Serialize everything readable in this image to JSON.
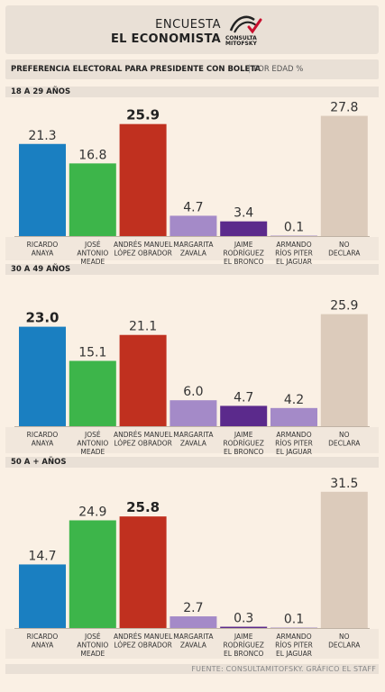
{
  "header": {
    "line1": "ENCUESTA",
    "line2": "EL ECONOMISTA",
    "logo_line1": "CONSULTA",
    "logo_line2": "MITOFSKY",
    "logo_icon": "mitofsky-logo-icon",
    "accent": "#c8102e"
  },
  "subtitle": {
    "main": "PREFERENCIA ELECTORAL PARA PRESIDENTE CON BOLETA",
    "separator": "|",
    "unit": "POR EDAD %"
  },
  "source": "FUENTE: CONSULTAMITOFSKY. GRÁFICO EL STAFF",
  "colors": [
    "#1a7fc1",
    "#3db54a",
    "#c0301f",
    "#a48ac8",
    "#5b2a8c",
    "#a48ac8",
    "#dccbbb"
  ],
  "chart_data": [
    {
      "type": "bar",
      "title": "18 A 29 AÑOS",
      "categories": [
        [
          "RICARDO",
          "ANAYA"
        ],
        [
          "JOSÉ",
          "ANTONIO",
          "MEADE"
        ],
        [
          "ANDRÉS MANUEL",
          "LÓPEZ OBRADOR"
        ],
        [
          "MARGARITA",
          "ZAVALA"
        ],
        [
          "JAIME",
          "RODRÍGUEZ",
          "EL BRONCO"
        ],
        [
          "ARMANDO",
          "RÍOS PITER",
          "EL JAGUAR"
        ],
        [
          "NO",
          "DECLARA"
        ]
      ],
      "value_labels": [
        "21.3",
        "16.8",
        "25.9",
        "4.7",
        "3.4",
        "0.1",
        "27.8"
      ],
      "values": [
        21.3,
        16.8,
        25.9,
        4.7,
        3.4,
        0.1,
        27.8
      ],
      "bold_index": 2
    },
    {
      "type": "bar",
      "title": "30 A 49 AÑOS",
      "categories": [
        [
          "RICARDO",
          "ANAYA"
        ],
        [
          "JOSÉ",
          "ANTONIO",
          "MEADE"
        ],
        [
          "ANDRÉS MANUEL",
          "LÓPEZ OBRADOR"
        ],
        [
          "MARGARITA",
          "ZAVALA"
        ],
        [
          "JAIME",
          "RODRÍGUEZ",
          "EL BRONCO"
        ],
        [
          "ARMANDO",
          "RÍOS PITER",
          "EL JAGUAR"
        ],
        [
          "NO",
          "DECLARA"
        ]
      ],
      "value_labels": [
        "23.0",
        "15.1",
        "21.1",
        "6.0",
        "4.7",
        "4.2",
        "25.9"
      ],
      "values": [
        23.0,
        15.1,
        21.1,
        6.0,
        4.7,
        4.2,
        25.9
      ],
      "bold_index": 0
    },
    {
      "type": "bar",
      "title": "50 A + AÑOS",
      "categories": [
        [
          "RICARDO",
          "ANAYA"
        ],
        [
          "JOSÉ",
          "ANTONIO",
          "MEADE"
        ],
        [
          "ANDRÉS MANUEL",
          "LÓPEZ OBRADOR"
        ],
        [
          "MARGARITA",
          "ZAVALA"
        ],
        [
          "JAIME",
          "RODRÍGUEZ",
          "EL BRONCO"
        ],
        [
          "ARMANDO",
          "RÍOS PITER",
          "EL JAGUAR"
        ],
        [
          "NO",
          "DECLARA"
        ]
      ],
      "value_labels": [
        "14.7",
        "24.9",
        "25.8",
        "2.7",
        "0.3",
        "0.1",
        "31.5"
      ],
      "values": [
        14.7,
        24.9,
        25.8,
        2.7,
        0.3,
        0.1,
        31.5
      ],
      "bold_index": 2
    }
  ]
}
